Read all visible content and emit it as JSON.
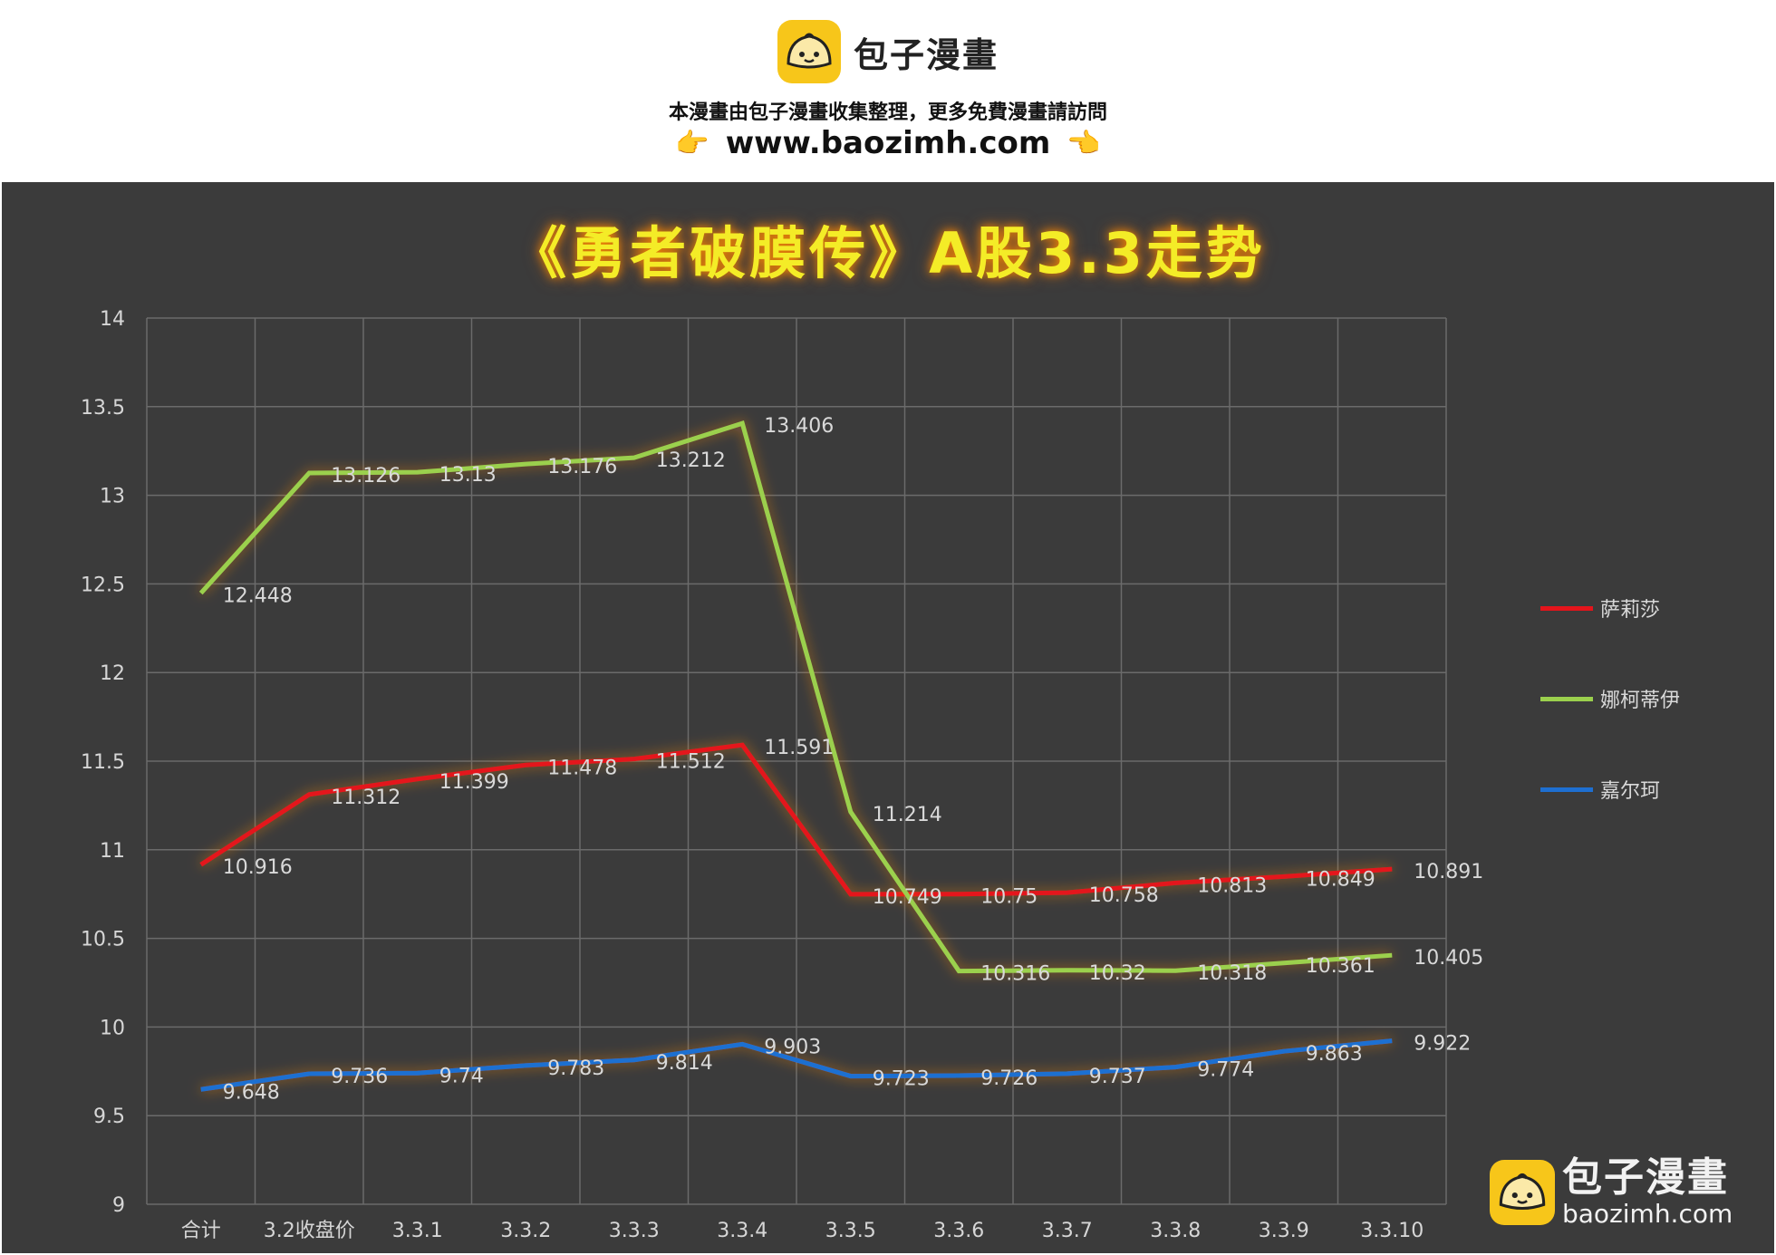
{
  "banner": {
    "brand_name": "包子漫畫",
    "tagline": "本漫畫由包子漫畫收集整理，更多免費漫畫請訪問",
    "url": "www.baozimh.com",
    "hand_left": "👉",
    "hand_right": "👈"
  },
  "watermark": {
    "name": "包子漫畫",
    "url": "baozimh.com"
  },
  "chart_data": {
    "type": "line",
    "title": "《勇者破膜传》A股3.3走势",
    "categories": [
      "合计",
      "3.2收盘价",
      "3.3.1",
      "3.3.2",
      "3.3.3",
      "3.3.4",
      "3.3.5",
      "3.3.6",
      "3.3.7",
      "3.3.8",
      "3.3.9",
      "3.3.10"
    ],
    "ylim": [
      9,
      14
    ],
    "yticks": [
      "9",
      "9.5",
      "10",
      "10.5",
      "11",
      "11.5",
      "12",
      "12.5",
      "13",
      "13.5",
      "14"
    ],
    "grid": true,
    "legend_position": "right",
    "series": [
      {
        "name": "萨莉莎",
        "color": "#e4141b",
        "values": [
          10.916,
          11.312,
          11.399,
          11.478,
          11.512,
          11.591,
          10.749,
          10.75,
          10.758,
          10.813,
          10.849,
          10.891
        ],
        "labels": [
          "10.916",
          "11.312",
          "11.399",
          "11.478",
          "11.512",
          "11.591",
          "10.749",
          "10.75",
          "10.758",
          "10.813",
          "10.849",
          "10.891"
        ]
      },
      {
        "name": "娜柯蒂伊",
        "color": "#9bd04d",
        "values": [
          12.448,
          13.126,
          13.13,
          13.176,
          13.212,
          13.406,
          11.214,
          10.316,
          10.32,
          10.318,
          10.361,
          10.405
        ],
        "labels": [
          "12.448",
          "13.126",
          "13.13",
          "13.176",
          "13.212",
          "13.406",
          "11.214",
          "10.316",
          "10.32",
          "10.318",
          "10.361",
          "10.405"
        ]
      },
      {
        "name": "嘉尔珂",
        "color": "#1e6fd1",
        "values": [
          9.648,
          9.736,
          9.74,
          9.783,
          9.814,
          9.903,
          9.723,
          9.726,
          9.737,
          9.774,
          9.863,
          9.922
        ],
        "labels": [
          "9.648",
          "9.736",
          "9.74",
          "9.783",
          "9.814",
          "9.903",
          "9.723",
          "9.726",
          "9.737",
          "9.774",
          "9.863",
          "9.922"
        ]
      }
    ]
  }
}
